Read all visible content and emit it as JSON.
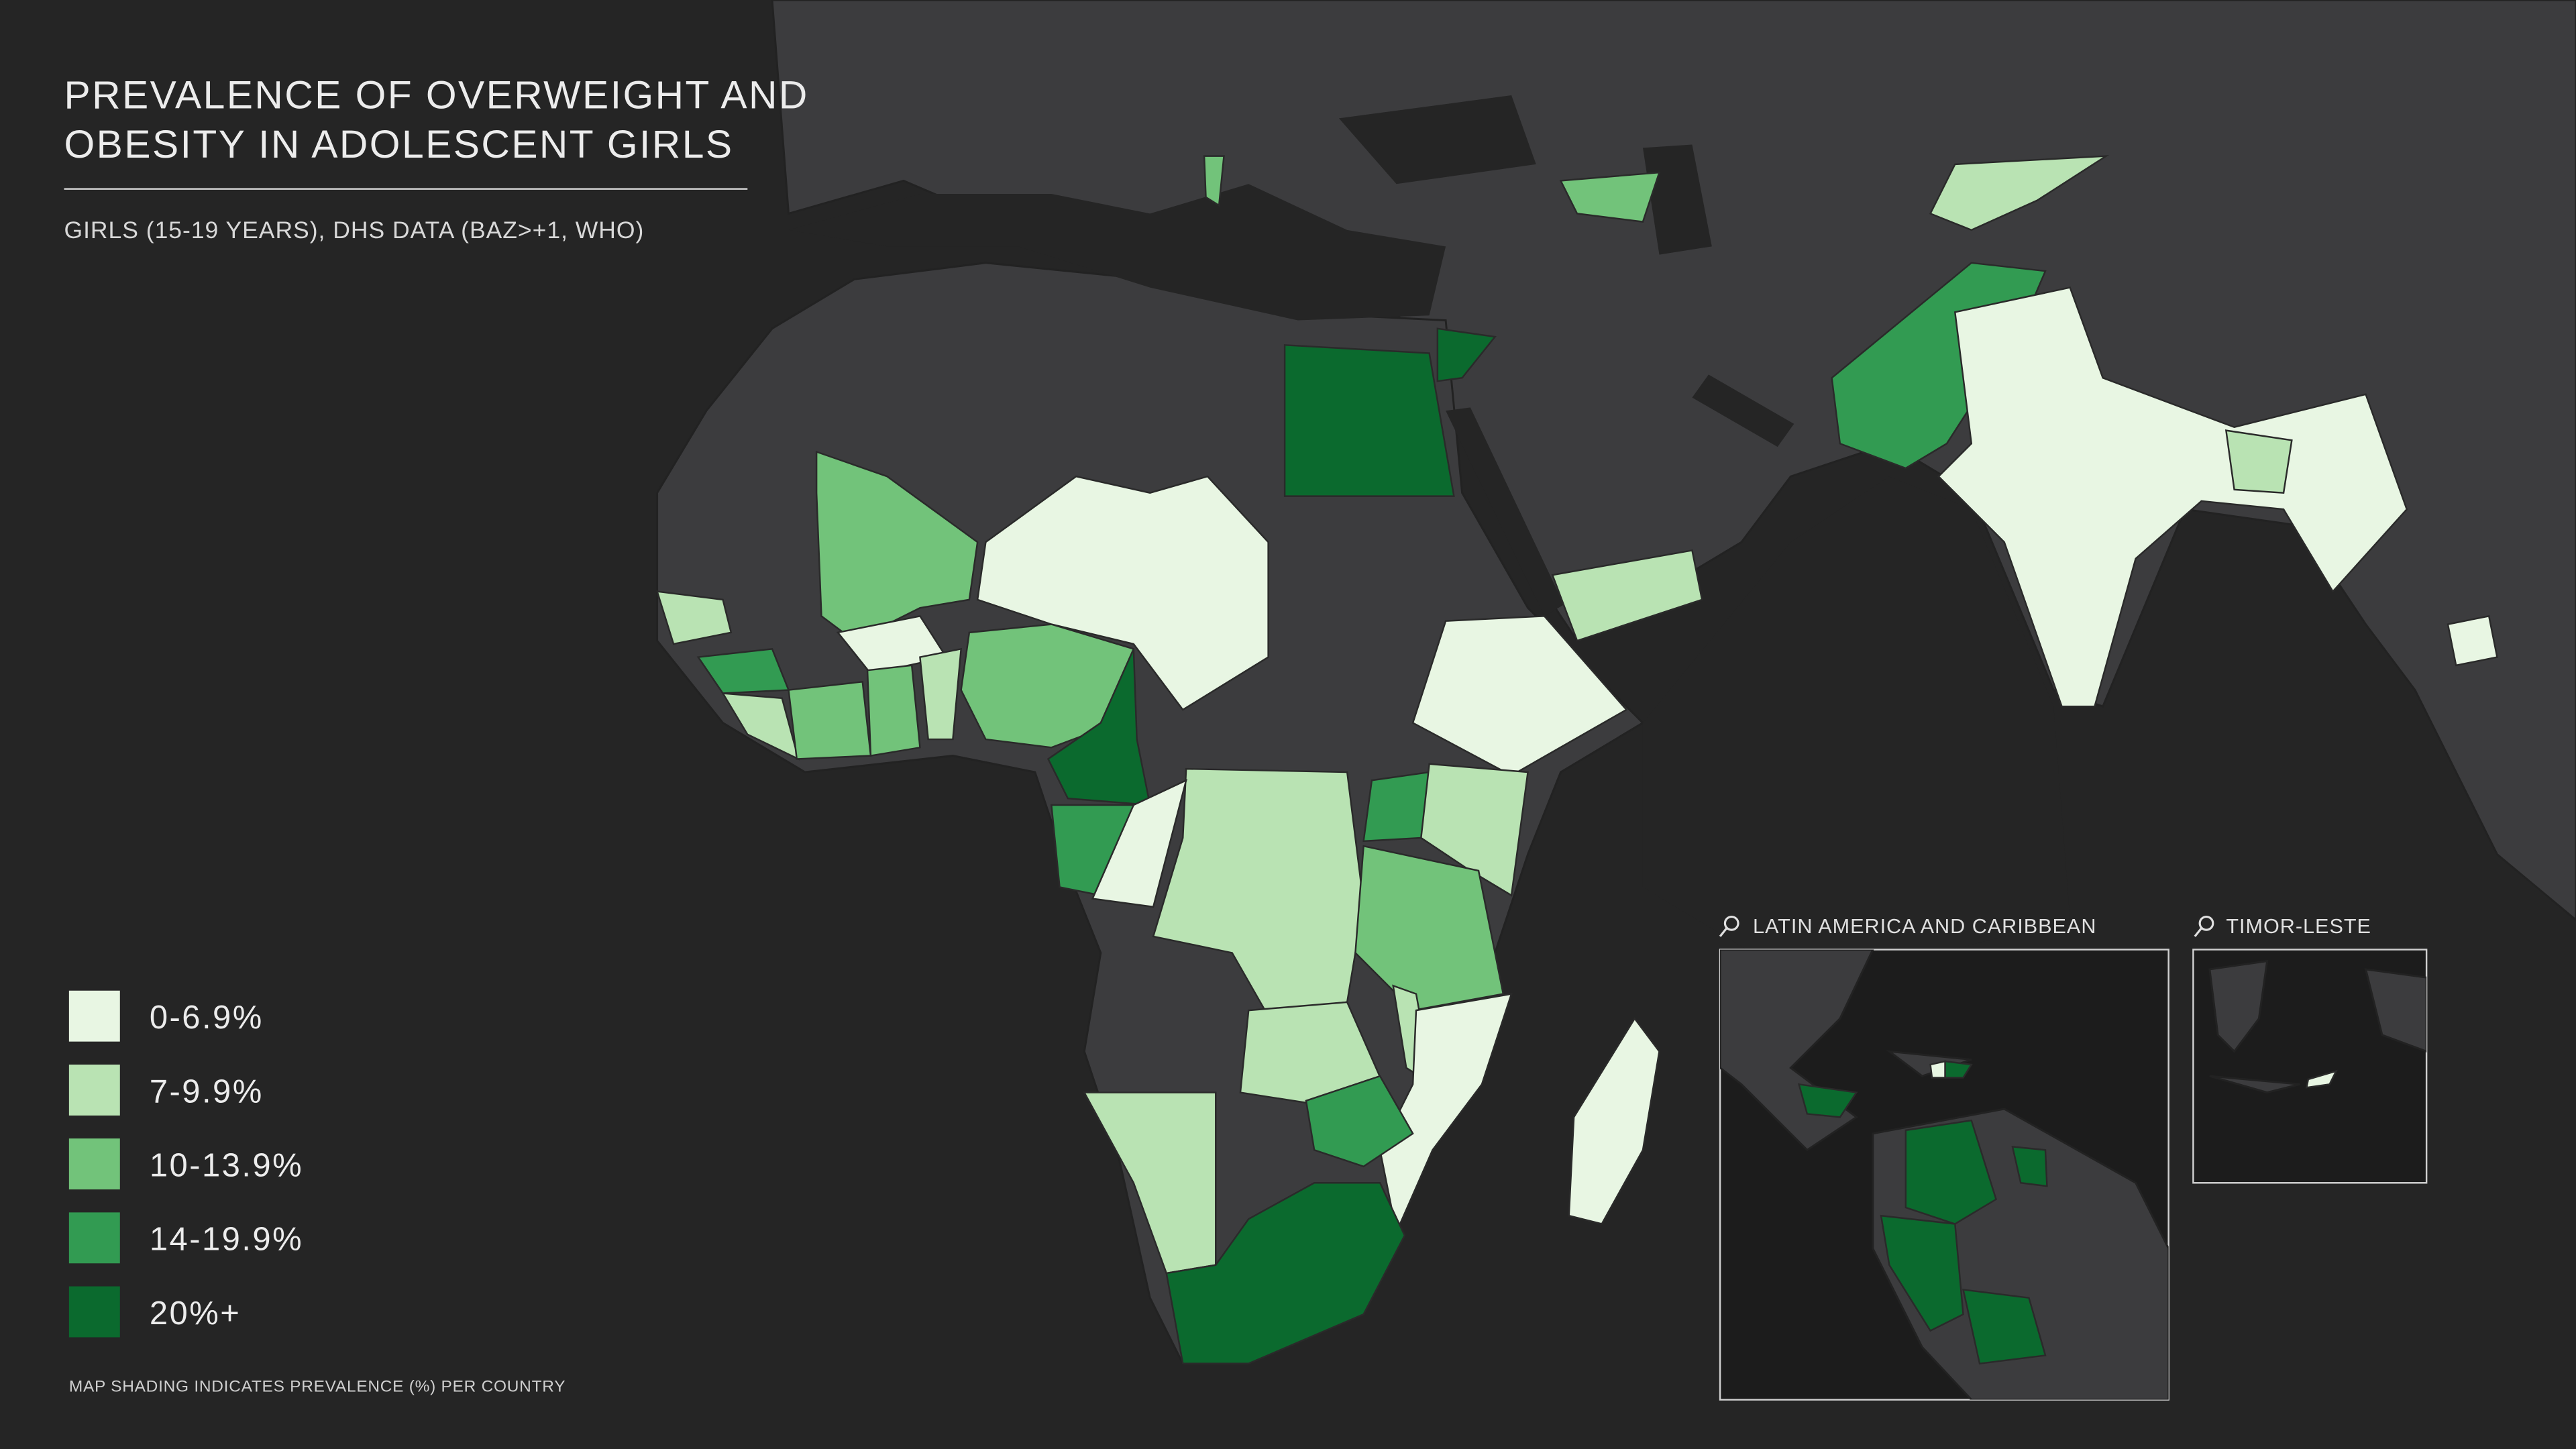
{
  "header": {
    "title_lines": [
      "PREVALENCE OF OVERWEIGHT AND",
      "OBESITY IN ADOLESCENT GIRLS"
    ],
    "subtitle": "GIRLS (15-19 YEARS), DHS DATA (BAZ>+1, WHO)"
  },
  "legend": {
    "items": [
      {
        "label": "0-6.9%",
        "color": "#e8f6e3"
      },
      {
        "label": "7-9.9%",
        "color": "#b9e3b3"
      },
      {
        "label": "10-13.9%",
        "color": "#72c37a"
      },
      {
        "label": "14-19.9%",
        "color": "#329b52"
      },
      {
        "label": "20%+",
        "color": "#0b6a2e"
      }
    ]
  },
  "footnote": "MAP SHADING INDICATES PREVALENCE (%) PER COUNTRY",
  "insets": [
    {
      "title": "LATIN AMERICA AND CARIBBEAN"
    },
    {
      "title": "TIMOR-LESTE"
    }
  ]
}
